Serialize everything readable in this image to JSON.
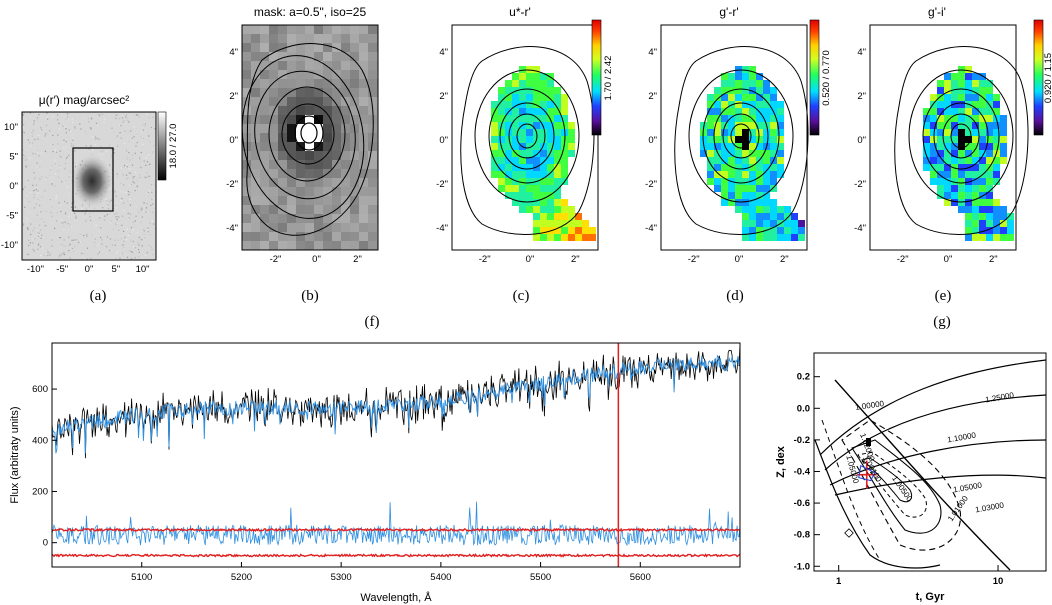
{
  "figure": {
    "panel_labels": [
      "(a)",
      "(b)",
      "(c)",
      "(d)",
      "(e)",
      "(f)",
      "(g)"
    ]
  },
  "panels": {
    "a": {
      "title": "μ(r′) mag/arcsec²",
      "colorbar_label": "18.0 / 27.0",
      "xticks": [
        "-10\"",
        "-5\"",
        "0\"",
        "5\"",
        "10\""
      ],
      "yticks": [
        "10\"",
        "5\"",
        "0\"",
        "-5\"",
        "-10\""
      ]
    },
    "b": {
      "title": "mask: a=0.5\", iso=25",
      "xticks": [
        "-2\"",
        "0\"",
        "2\""
      ],
      "yticks": [
        "4\"",
        "2\"",
        "0\"",
        "-2\"",
        "-4\""
      ]
    },
    "c": {
      "title": "u*-r'",
      "colorbar_label": "1.70 / 2.42",
      "xticks": [
        "-2\"",
        "0\"",
        "2\""
      ],
      "yticks": [
        "4\"",
        "2\"",
        "0\"",
        "-2\"",
        "-4\""
      ]
    },
    "d": {
      "title": "g'-r'",
      "colorbar_label": "0.520 / 0.770",
      "xticks": [
        "-2\"",
        "0\"",
        "2\""
      ],
      "yticks": [
        "4\"",
        "2\"",
        "0\"",
        "-2\"",
        "-4\""
      ]
    },
    "e": {
      "title": "g'-i'",
      "colorbar_label": "0.920 / 1.15",
      "xticks": [
        "-2\"",
        "0\"",
        "2\""
      ],
      "yticks": [
        "4\"",
        "2\"",
        "0\"",
        "-2\"",
        "-4\""
      ]
    }
  },
  "chart_data": [
    {
      "type": "line",
      "xlabel": "Wavelength, Å",
      "ylabel": "Flux (arbitraty units)",
      "xlim": [
        5010,
        5700
      ],
      "ylim": [
        -95,
        780
      ],
      "xticks": [
        5100,
        5200,
        5300,
        5400,
        5500,
        5600
      ],
      "yticks": [
        0,
        200,
        400,
        600
      ],
      "series": [
        {
          "color": "#000000",
          "start": 440,
          "end": 690,
          "noise": 55
        },
        {
          "color": "#2f8fe0",
          "start": 440,
          "end": 690,
          "noise": 30
        },
        {
          "color": "#2f8fe0",
          "level": 30,
          "noise": 40
        },
        {
          "color": "#e02020",
          "level_upper": 50,
          "level_lower": -50
        }
      ],
      "annotation_x": 5578
    },
    {
      "type": "line",
      "xlabel": "t, Gyr",
      "ylabel": "Z, dex",
      "xscale": "log",
      "xlim": [
        0.7,
        20
      ],
      "ylim": [
        -1.03,
        0.35
      ],
      "xticks": [
        1,
        10
      ],
      "yticks": [
        0.2,
        0.0,
        -0.2,
        -0.4,
        -0.6,
        -0.8,
        -1.0
      ],
      "contour_labels": [
        "1.25000",
        "1.10000",
        "1.05000",
        "1.03000",
        "1.01000",
        "1.00500",
        "1.00100",
        "1.02000",
        "1.05000",
        "1.00000"
      ],
      "best_fit": {
        "t": 1.5,
        "z": -0.42
      }
    }
  ]
}
